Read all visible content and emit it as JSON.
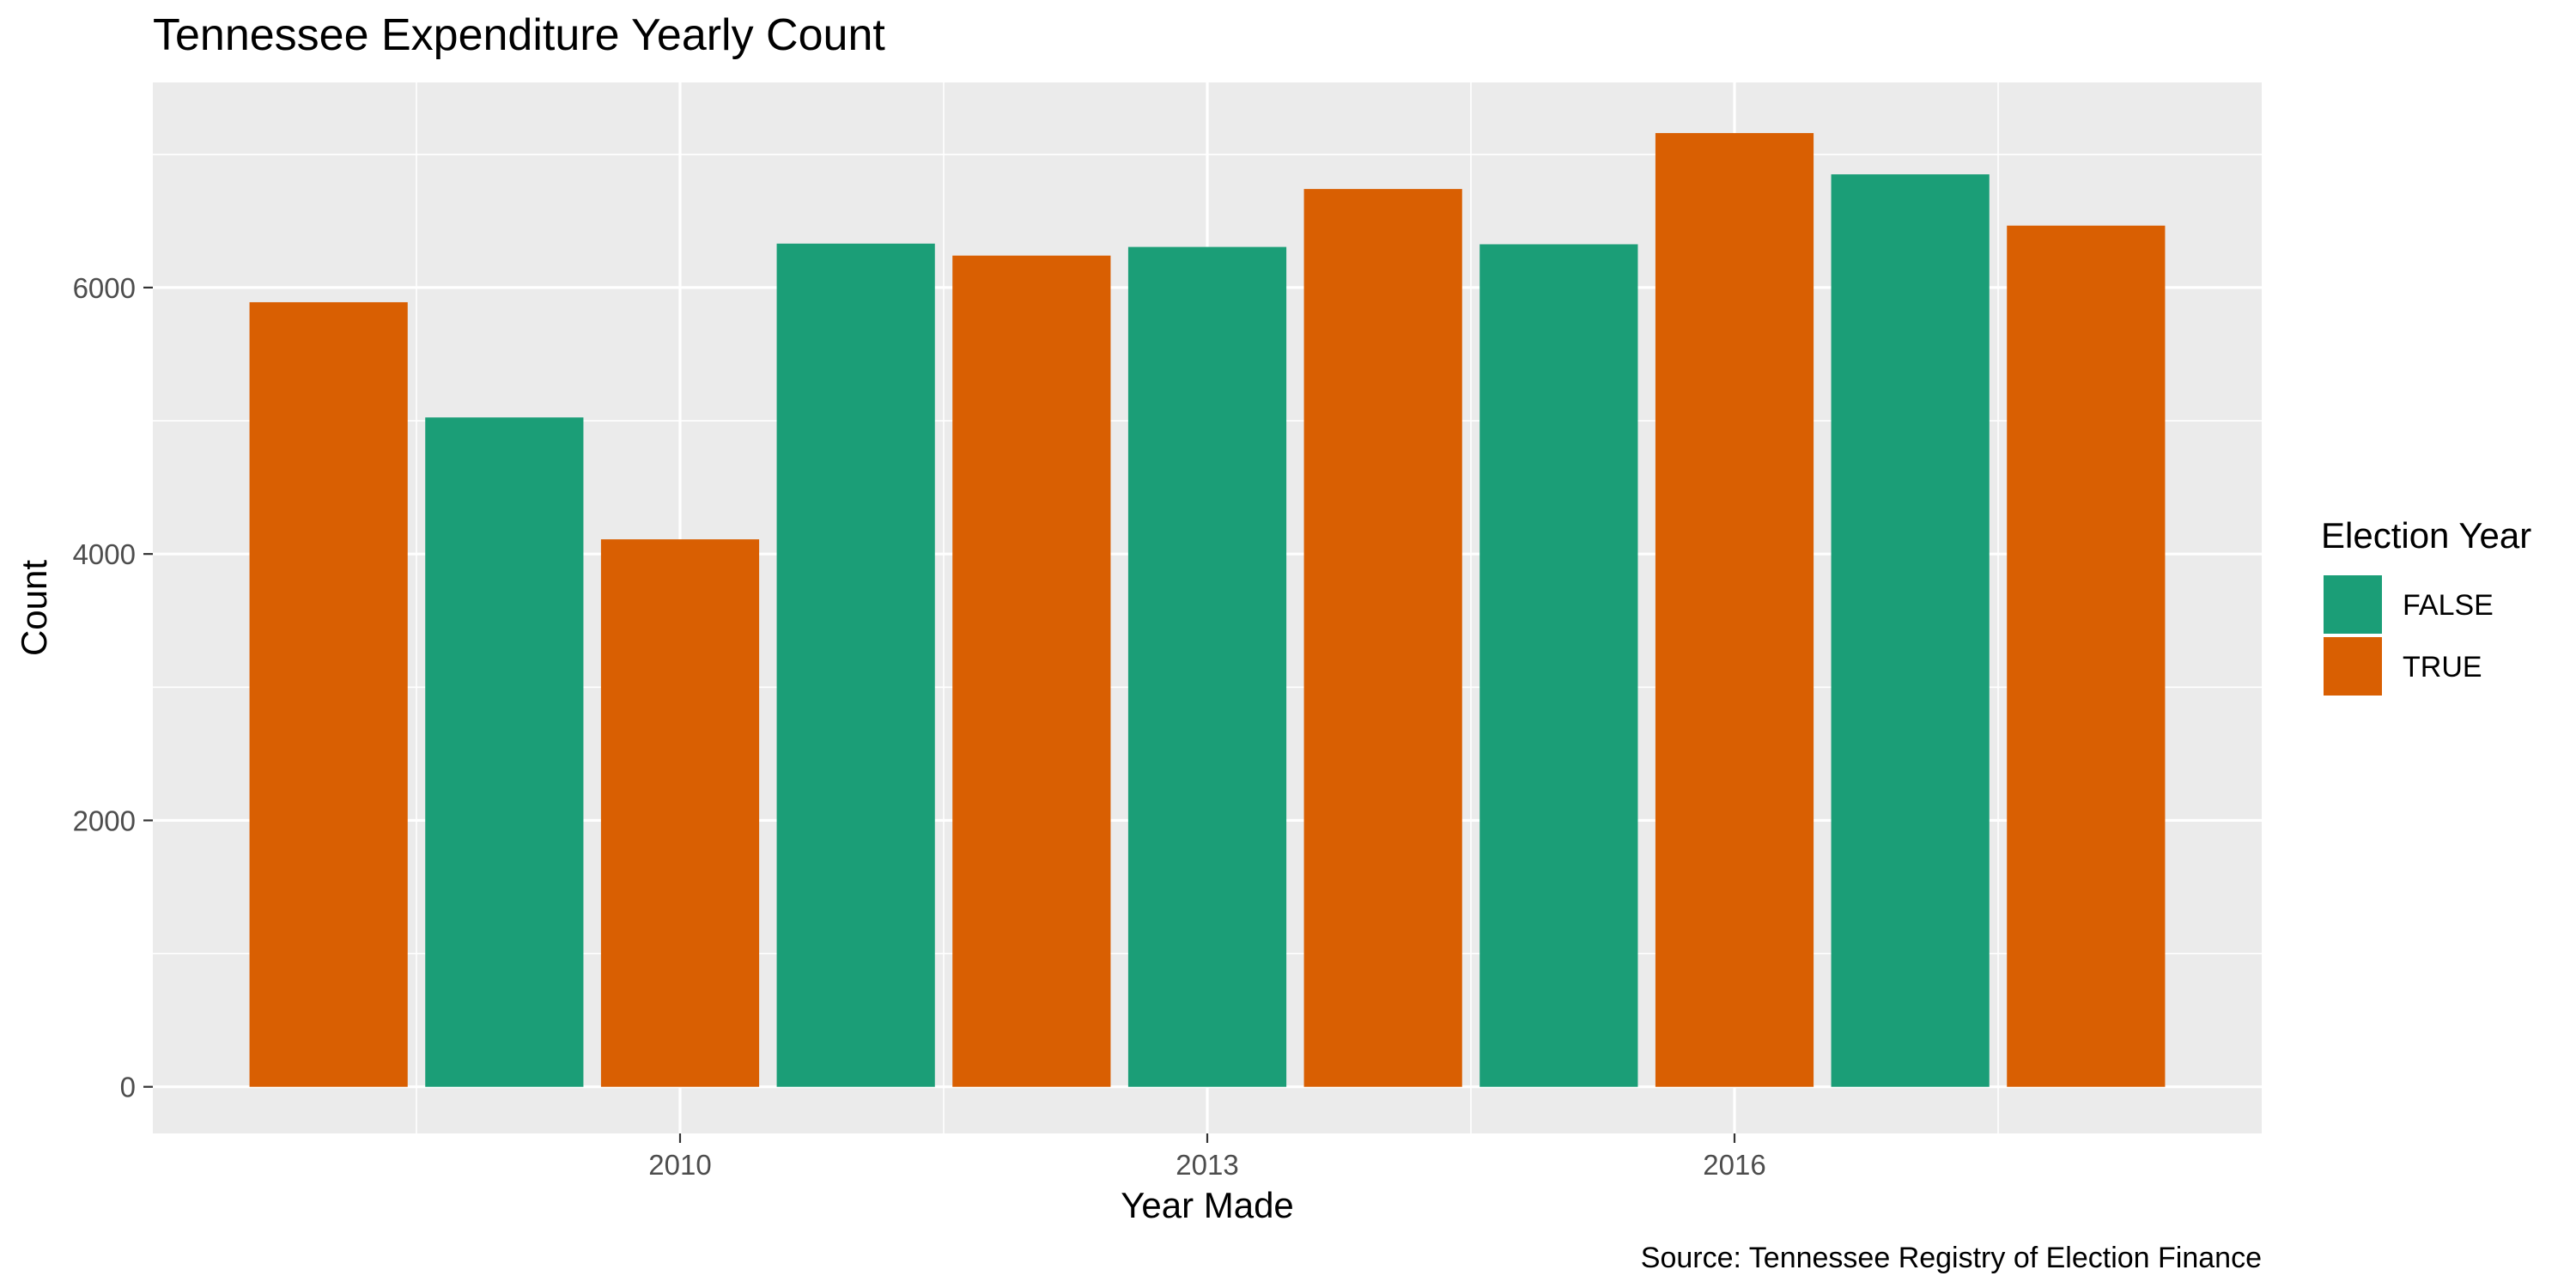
{
  "chart_data": {
    "type": "bar",
    "title": "Tennessee Expenditure Yearly Count",
    "xlabel": "Year Made",
    "ylabel": "Count",
    "caption": "Source: Tennessee Registry of Election Finance",
    "x": [
      2008,
      2009,
      2010,
      2011,
      2012,
      2013,
      2014,
      2015,
      2016,
      2017,
      2018
    ],
    "values": [
      5890,
      5025,
      4110,
      6330,
      6240,
      6305,
      6740,
      6325,
      7160,
      6850,
      6465
    ],
    "election_year": [
      "TRUE",
      "FALSE",
      "TRUE",
      "FALSE",
      "TRUE",
      "FALSE",
      "TRUE",
      "FALSE",
      "TRUE",
      "FALSE",
      "TRUE"
    ],
    "xlim": [
      2007,
      2019
    ],
    "ylim": [
      -350,
      7540
    ],
    "x_ticks": [
      2010,
      2013,
      2016
    ],
    "y_ticks": [
      0,
      2000,
      4000,
      6000
    ],
    "grid": true,
    "legend": {
      "title": "Election Year",
      "position": "right",
      "entries": [
        {
          "label": "FALSE",
          "color": "#1b9e77"
        },
        {
          "label": "TRUE",
          "color": "#d95f02"
        }
      ]
    },
    "panel_background": "#ebebeb",
    "grid_color": "#ffffff"
  }
}
